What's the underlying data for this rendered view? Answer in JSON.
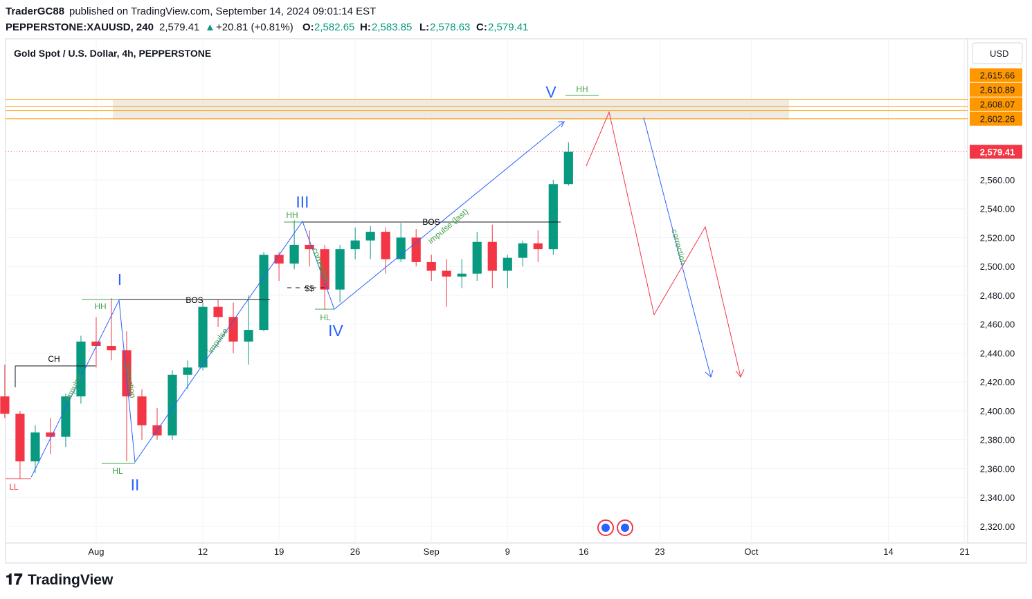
{
  "header": {
    "author": "TraderGC88",
    "published": "published on TradingView.com, September 14, 2024 09:01:14 EST",
    "symbol": "PEPPERSTONE:XAUUSD, 240",
    "last": "2,579.41",
    "change": "+20.81 (+0.81%)",
    "ohlc": [
      {
        "key": "O:",
        "value": "2,582.65"
      },
      {
        "key": "H:",
        "value": "2,583.85"
      },
      {
        "key": "L:",
        "value": "2,578.63"
      },
      {
        "key": "C:",
        "value": "2,579.41"
      }
    ]
  },
  "chart_data": {
    "type": "candlestick",
    "title": "Gold Spot / U.S. Dollar, 4h, PEPPERSTONE",
    "currency": "USD",
    "x": [
      2,
      3,
      4,
      5,
      6,
      7,
      8,
      9,
      10,
      11,
      12,
      13,
      14,
      15,
      16,
      17,
      18,
      19,
      20,
      21,
      22,
      23,
      24,
      25,
      26,
      27,
      28,
      29,
      30,
      31,
      32,
      33,
      34,
      35,
      36,
      37,
      38,
      39
    ],
    "open": [
      2410,
      2398,
      2365,
      2385,
      2382,
      2410,
      2448,
      2445,
      2442,
      2410,
      2390,
      2383,
      2425,
      2430,
      2472,
      2465,
      2448,
      2456,
      2508,
      2502,
      2515,
      2512,
      2484,
      2512,
      2518,
      2524,
      2505,
      2520,
      2503,
      2497,
      2493,
      2495,
      2517,
      2497,
      2506,
      2516,
      2512,
      2557
    ],
    "high": [
      2432,
      2400,
      2390,
      2395,
      2412,
      2452,
      2465,
      2478,
      2455,
      2415,
      2402,
      2428,
      2435,
      2475,
      2477,
      2475,
      2480,
      2510,
      2510,
      2532,
      2525,
      2515,
      2515,
      2527,
      2528,
      2527,
      2530,
      2526,
      2508,
      2505,
      2505,
      2524,
      2529,
      2508,
      2518,
      2525,
      2560,
      2586
    ],
    "low": [
      2395,
      2353,
      2357,
      2370,
      2375,
      2405,
      2430,
      2435,
      2365,
      2380,
      2380,
      2380,
      2415,
      2428,
      2458,
      2440,
      2432,
      2455,
      2490,
      2498,
      2500,
      2470,
      2475,
      2505,
      2505,
      2495,
      2503,
      2500,
      2490,
      2472,
      2485,
      2490,
      2485,
      2485,
      2500,
      2503,
      2508,
      2556
    ],
    "close": [
      2398,
      2365,
      2385,
      2382,
      2410,
      2448,
      2445,
      2442,
      2410,
      2390,
      2383,
      2425,
      2430,
      2472,
      2465,
      2448,
      2456,
      2508,
      2502,
      2515,
      2512,
      2484,
      2512,
      2518,
      2524,
      2505,
      2520,
      2503,
      2497,
      2493,
      2495,
      2517,
      2497,
      2506,
      2516,
      2512,
      2557,
      2579.41
    ],
    "up_color": "#089981",
    "down_color": "#f23645",
    "xlim": [
      2.05,
      65.2
    ],
    "xticks": [
      {
        "value": 8,
        "label": "Aug"
      },
      {
        "value": 15,
        "label": "12"
      },
      {
        "value": 20,
        "label": "19"
      },
      {
        "value": 25,
        "label": "26"
      },
      {
        "value": 30,
        "label": "Sep"
      },
      {
        "value": 35,
        "label": "9"
      },
      {
        "value": 40,
        "label": "16"
      },
      {
        "value": 45,
        "label": "23"
      },
      {
        "value": 51,
        "label": "Oct"
      },
      {
        "value": 60,
        "label": "14"
      },
      {
        "value": 65,
        "label": "21"
      }
    ],
    "ylim": [
      2308.5,
      2657.7
    ],
    "yticks": [
      {
        "value": 2320,
        "label": "2,320.00"
      },
      {
        "value": 2340,
        "label": "2,340.00"
      },
      {
        "value": 2360,
        "label": "2,360.00"
      },
      {
        "value": 2380,
        "label": "2,380.00"
      },
      {
        "value": 2400,
        "label": "2,400.00"
      },
      {
        "value": 2420,
        "label": "2,420.00"
      },
      {
        "value": 2440,
        "label": "2,440.00"
      },
      {
        "value": 2460,
        "label": "2,460.00"
      },
      {
        "value": 2480,
        "label": "2,480.00"
      },
      {
        "value": 2500,
        "label": "2,500.00"
      },
      {
        "value": 2520,
        "label": "2,520.00"
      },
      {
        "value": 2540,
        "label": "2,540.00"
      },
      {
        "value": 2560,
        "label": "2,560.00"
      }
    ],
    "grid": true,
    "levels": [
      {
        "value": 2615.66,
        "label": "2,615.66"
      },
      {
        "value": 2610.89,
        "label": "2,610.89"
      },
      {
        "value": 2608.07,
        "label": "2,608.07"
      },
      {
        "value": 2602.26,
        "label": "2,602.26"
      }
    ],
    "level_color": "#ff9800",
    "last_price": {
      "value": 2579.41,
      "label": "2,579.41"
    },
    "annotations": [
      "CH",
      "BOS",
      "BOS",
      "$$",
      "HH",
      "HH",
      "HH",
      "HL",
      "HL",
      "LL",
      "I",
      "II",
      "III",
      "IV",
      "V",
      "impulse",
      "correction",
      "impulse",
      "correction",
      "impulse (last)",
      "correction"
    ]
  },
  "footer": {
    "brand": "TradingView"
  }
}
